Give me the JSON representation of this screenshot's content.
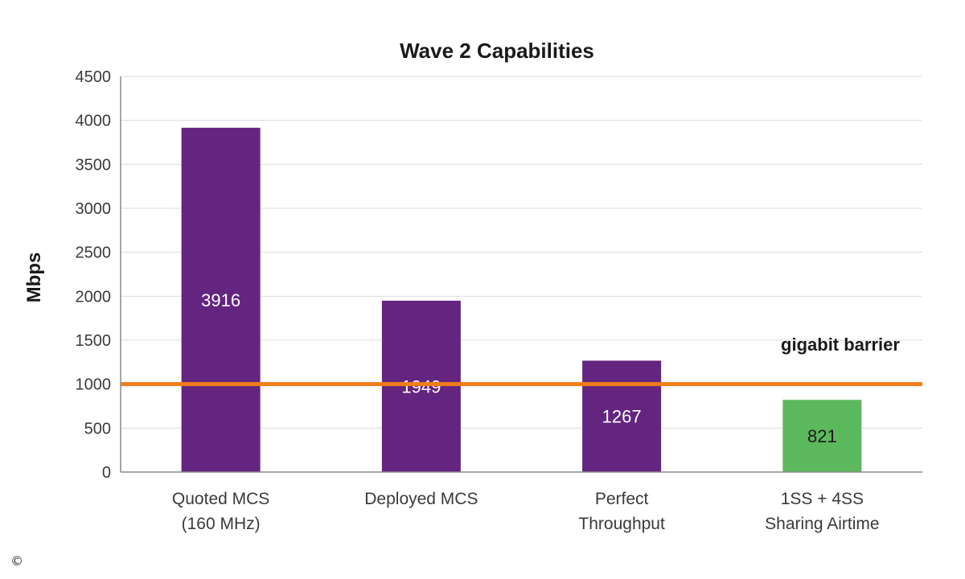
{
  "chart_data": {
    "type": "bar",
    "title": "Wave 2 Capabilities",
    "xlabel": "",
    "ylabel": "Mbps",
    "ylim": [
      0,
      4500
    ],
    "yticks": [
      0,
      500,
      1000,
      1500,
      2000,
      2500,
      3000,
      3500,
      4000,
      4500
    ],
    "grid": true,
    "categories": [
      [
        "Quoted MCS",
        "(160 MHz)"
      ],
      [
        "Deployed MCS"
      ],
      [
        "Perfect",
        "Throughput"
      ],
      [
        "1SS + 4SS",
        "Sharing Airtime"
      ]
    ],
    "values": [
      3916,
      1949,
      1267,
      821
    ],
    "bar_colors": [
      "#63257f",
      "#63257f",
      "#63257f",
      "#5cb85c"
    ],
    "label_colors": [
      "#ffffff",
      "#ffffff",
      "#ffffff",
      "#1a1a1a"
    ],
    "reference_line": {
      "value": 1000,
      "label": "gigabit barrier",
      "color": "#f07d1a"
    }
  },
  "copyright_symbol": "©"
}
